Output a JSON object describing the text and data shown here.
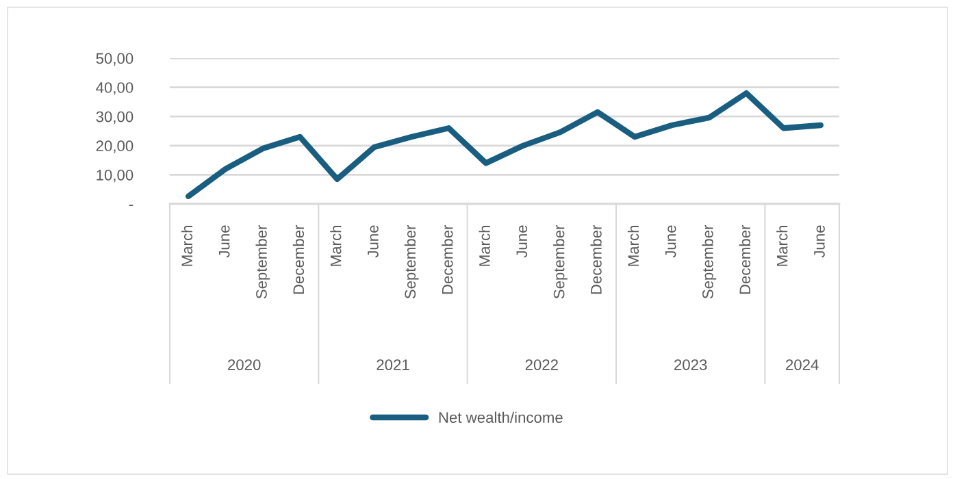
{
  "chart_data": {
    "type": "line",
    "categories": [
      "March",
      "June",
      "September",
      "December",
      "March",
      "June",
      "September",
      "December",
      "March",
      "June",
      "September",
      "December",
      "March",
      "June",
      "September",
      "December",
      "March",
      "June"
    ],
    "series": [
      {
        "name": "Net wealth/income",
        "color": "#195e80",
        "values": [
          2.6,
          12,
          19,
          23,
          8.5,
          19.5,
          23,
          26,
          14,
          20,
          24.6,
          31.5,
          23,
          27,
          29.6,
          38,
          26,
          27
        ]
      }
    ],
    "ylim": [
      0,
      50
    ],
    "yticks": [
      {
        "value": 0,
        "label": "-"
      },
      {
        "value": 10,
        "label": "10,00"
      },
      {
        "value": 20,
        "label": "20,00"
      },
      {
        "value": 30,
        "label": "30,00"
      },
      {
        "value": 40,
        "label": "40,00"
      },
      {
        "value": 50,
        "label": "50,00"
      }
    ],
    "grid": "y",
    "legend": "bottom",
    "marker": "none",
    "line_style": "solid",
    "annotations": [
      "2020",
      "2021",
      "2022",
      "2023",
      "2024"
    ]
  }
}
